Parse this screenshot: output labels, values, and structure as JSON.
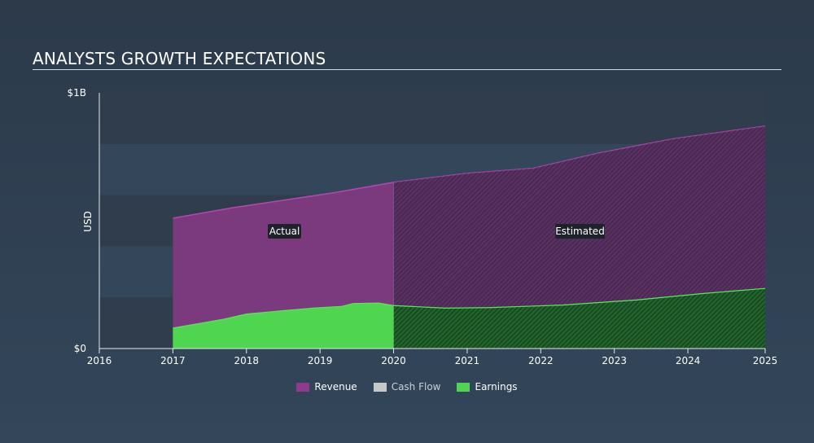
{
  "title": "ANALYSTS GROWTH EXPECTATIONS",
  "chart_data": {
    "type": "area",
    "ylabel": "USD",
    "y_tick_labels": [
      "$1B",
      "$0"
    ],
    "ylim": [
      0,
      1000000000
    ],
    "xlim": [
      2016,
      2025.05
    ],
    "x_ticks": [
      2016,
      2017,
      2018,
      2019,
      2020,
      2021,
      2022,
      2023,
      2024,
      2025
    ],
    "actual_estimated_split": 2020,
    "annotations": [
      "Actual",
      "Estimated"
    ],
    "grid": "horizontal bands",
    "legend_position": "bottom-center",
    "series": [
      {
        "name": "Revenue",
        "color": "#8e3b8e",
        "x": [
          2017,
          2017.8,
          2018.5,
          2019.2,
          2020,
          2021,
          2021.9,
          2022.8,
          2023.8,
          2025.05
        ],
        "y": [
          510000000,
          550000000,
          580000000,
          610000000,
          650000000,
          685000000,
          705000000,
          765000000,
          820000000,
          870000000
        ]
      },
      {
        "name": "Cash Flow",
        "color": "#c8c8c8",
        "x": [],
        "y": []
      },
      {
        "name": "Earnings",
        "color": "#4fd54f",
        "x": [
          2017,
          2017.7,
          2018,
          2018.5,
          2018.9,
          2019.3,
          2019.45,
          2019.8,
          2020,
          2020.7,
          2021.3,
          2022.3,
          2023.3,
          2024.2,
          2025.05
        ],
        "y": [
          80000000,
          115000000,
          135000000,
          148000000,
          158000000,
          165000000,
          176000000,
          178000000,
          168000000,
          158000000,
          160000000,
          170000000,
          190000000,
          215000000,
          235000000
        ]
      }
    ]
  },
  "legend": {
    "revenue": "Revenue",
    "cash_flow": "Cash Flow",
    "earnings": "Earnings"
  }
}
